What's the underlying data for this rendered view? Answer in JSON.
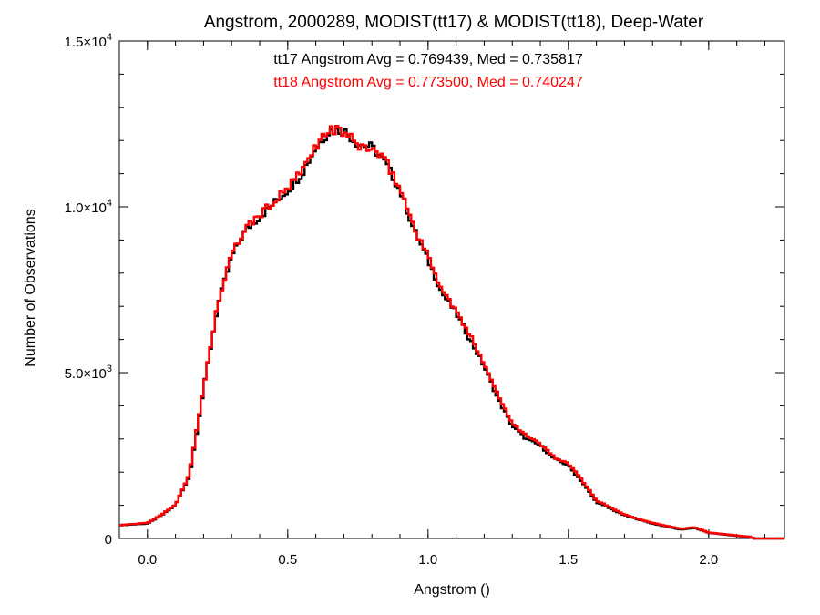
{
  "chart_data": {
    "type": "line",
    "title": "Angstrom, 2000289, MODIST(tt17) & MODIST(tt18), Deep-Water",
    "xlabel": "Angstrom ()",
    "ylabel": "Number of Observations",
    "xlim": [
      -0.1,
      2.27
    ],
    "ylim": [
      0,
      15000
    ],
    "x_ticks": [
      {
        "value": 0.0,
        "label": "0.0"
      },
      {
        "value": 0.5,
        "label": "0.5"
      },
      {
        "value": 1.0,
        "label": "1.0"
      },
      {
        "value": 1.5,
        "label": "1.5"
      },
      {
        "value": 2.0,
        "label": "2.0"
      }
    ],
    "y_ticks": [
      {
        "value": 0,
        "mantissa": "0",
        "exponent": ""
      },
      {
        "value": 5000,
        "mantissa": "5.0×10",
        "exponent": "3"
      },
      {
        "value": 10000,
        "mantissa": "1.0×10",
        "exponent": "4"
      },
      {
        "value": 15000,
        "mantissa": "1.5×10",
        "exponent": "4"
      }
    ],
    "annotations": [
      {
        "text": "tt17 Angstrom Avg = 0.769439, Med = 0.735817",
        "color": "#000000"
      },
      {
        "text": "tt18 Angstrom Avg = 0.773500, Med = 0.740247",
        "color": "#ff0000"
      }
    ],
    "grid": false,
    "step": true,
    "series": [
      {
        "color": "#000000",
        "x": [
          -0.1,
          0.0,
          0.05,
          0.1,
          0.15,
          0.2,
          0.25,
          0.3,
          0.35,
          0.4,
          0.45,
          0.5,
          0.55,
          0.6,
          0.65,
          0.7,
          0.75,
          0.8,
          0.85,
          0.9,
          0.95,
          1.0,
          1.05,
          1.1,
          1.15,
          1.2,
          1.25,
          1.3,
          1.35,
          1.4,
          1.45,
          1.5,
          1.55,
          1.6,
          1.7,
          1.8,
          1.9,
          1.95,
          2.0,
          2.1,
          2.15,
          2.16,
          2.27
        ],
        "y": [
          400,
          450,
          700,
          1000,
          1900,
          4500,
          7000,
          8500,
          9300,
          9700,
          10100,
          10500,
          11000,
          11800,
          12300,
          12300,
          11900,
          11800,
          11300,
          10500,
          9300,
          8400,
          7400,
          6800,
          6000,
          5200,
          4200,
          3400,
          3000,
          2800,
          2400,
          2200,
          1700,
          1100,
          700,
          450,
          270,
          320,
          170,
          80,
          40,
          0,
          0
        ]
      },
      {
        "color": "#ff0000",
        "x": [
          -0.1,
          0.0,
          0.05,
          0.1,
          0.15,
          0.2,
          0.25,
          0.3,
          0.35,
          0.4,
          0.45,
          0.5,
          0.55,
          0.6,
          0.65,
          0.7,
          0.75,
          0.8,
          0.85,
          0.9,
          0.95,
          1.0,
          1.05,
          1.1,
          1.15,
          1.2,
          1.25,
          1.3,
          1.35,
          1.4,
          1.45,
          1.5,
          1.55,
          1.6,
          1.7,
          1.8,
          1.9,
          1.95,
          2.0,
          2.1,
          2.15,
          2.16,
          2.27
        ],
        "y": [
          400,
          470,
          720,
          1020,
          1950,
          4550,
          7050,
          8550,
          9350,
          9750,
          10150,
          10550,
          11050,
          11850,
          12350,
          12250,
          11850,
          11750,
          11350,
          10550,
          9400,
          8500,
          7500,
          6850,
          6100,
          5300,
          4300,
          3500,
          3100,
          2850,
          2450,
          2250,
          1750,
          1150,
          720,
          470,
          290,
          340,
          180,
          90,
          50,
          0,
          0
        ]
      }
    ]
  }
}
